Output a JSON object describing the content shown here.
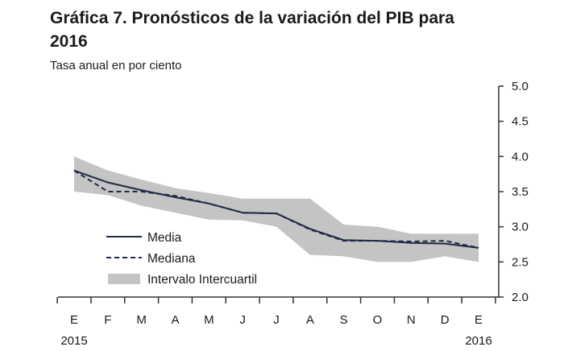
{
  "chart_data": {
    "type": "line",
    "title": "Gráfica 7. Pronósticos de la variación del PIB para 2016",
    "subtitle": "Tasa anual en por ciento",
    "categories": [
      "E",
      "F",
      "M",
      "A",
      "M",
      "J",
      "J",
      "A",
      "S",
      "O",
      "N",
      "D",
      "E"
    ],
    "year_labels": [
      {
        "index": 0,
        "label": "2015"
      },
      {
        "index": 12,
        "label": "2016"
      }
    ],
    "ylim": [
      2.0,
      5.0
    ],
    "yticks": [
      "5.0",
      "4.5",
      "4.0",
      "3.5",
      "3.0",
      "2.5",
      "2.0"
    ],
    "series": [
      {
        "name": "Media",
        "style": "solid",
        "values": [
          3.8,
          3.63,
          3.52,
          3.42,
          3.33,
          3.2,
          3.19,
          2.97,
          2.81,
          2.8,
          2.77,
          2.76,
          2.7
        ]
      },
      {
        "name": "Mediana",
        "style": "dashed",
        "values": [
          3.8,
          3.5,
          3.5,
          3.44,
          3.33,
          3.2,
          3.19,
          2.96,
          2.8,
          2.8,
          2.79,
          2.8,
          2.7
        ]
      }
    ],
    "band": {
      "name": "Intervalo Intercuartil",
      "upper": [
        4.0,
        3.8,
        3.67,
        3.55,
        3.48,
        3.4,
        3.4,
        3.4,
        3.03,
        3.0,
        2.9,
        2.9,
        2.9
      ],
      "lower": [
        3.5,
        3.45,
        3.3,
        3.2,
        3.1,
        3.09,
        3.0,
        2.6,
        2.58,
        2.5,
        2.5,
        2.58,
        2.5
      ]
    },
    "legend": [
      "Media",
      "Mediana",
      "Intervalo Intercuartil"
    ],
    "legend_position": "bottom-left",
    "colors": {
      "line": "#1f2a44",
      "band": "#c4c4c4",
      "axis": "#333333"
    }
  }
}
